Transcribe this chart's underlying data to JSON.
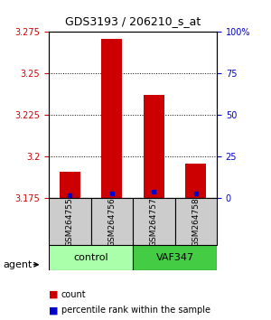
{
  "title": "GDS3193 / 206210_s_at",
  "samples": [
    "GSM264755",
    "GSM264756",
    "GSM264757",
    "GSM264758"
  ],
  "bar_values": [
    3.191,
    3.271,
    3.237,
    3.196
  ],
  "percentile_values": [
    2,
    3,
    4,
    3
  ],
  "ylim_left": [
    3.175,
    3.275
  ],
  "yticks_left": [
    3.175,
    3.2,
    3.225,
    3.25,
    3.275
  ],
  "yticks_right": [
    0,
    25,
    50,
    75,
    100
  ],
  "ylim_right": [
    0,
    100
  ],
  "bar_color": "#cc0000",
  "percentile_color": "#0000cc",
  "groups": [
    {
      "label": "control",
      "indices": [
        0,
        1
      ],
      "color": "#aaffaa"
    },
    {
      "label": "VAF347",
      "indices": [
        2,
        3
      ],
      "color": "#44cc44"
    }
  ],
  "legend_count_color": "#cc0000",
  "legend_pct_color": "#0000cc",
  "bg_color": "#ffffff",
  "plot_bg": "#ffffff",
  "agent_label": "agent",
  "xlabel_rotation": 90
}
